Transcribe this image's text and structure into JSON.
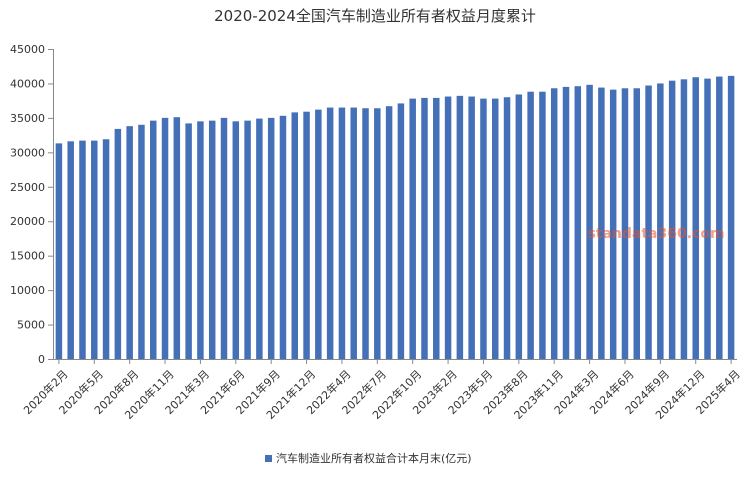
{
  "watermark": "standata360.com",
  "chart_data": {
    "type": "bar",
    "title": "2020-2024全国汽车制造业所有者权益月度累计",
    "xlabel": "",
    "ylabel": "",
    "ylim": [
      0,
      45000
    ],
    "yticks": [
      0,
      5000,
      10000,
      15000,
      20000,
      25000,
      30000,
      35000,
      40000,
      45000
    ],
    "grid": false,
    "legend_position": "bottom",
    "bar_color": "#4470b8",
    "categories": [
      "2020年2月",
      "2020年3月",
      "2020年4月",
      "2020年5月",
      "2020年6月",
      "2020年7月",
      "2020年8月",
      "2020年9月",
      "2020年10月",
      "2020年11月",
      "2020年12月",
      "2021年2月",
      "2021年3月",
      "2021年4月",
      "2021年5月",
      "2021年6月",
      "2021年7月",
      "2021年8月",
      "2021年9月",
      "2021年10月",
      "2021年11月",
      "2021年12月",
      "2022年2月",
      "2022年3月",
      "2022年4月",
      "2022年5月",
      "2022年6月",
      "2022年7月",
      "2022年8月",
      "2022年9月",
      "2022年10月",
      "2022年11月",
      "2022年12月",
      "2023年2月",
      "2023年3月",
      "2023年4月",
      "2023年5月",
      "2023年6月",
      "2023年7月",
      "2023年8月",
      "2023年9月",
      "2023年10月",
      "2023年11月",
      "2023年12月",
      "2024年2月",
      "2024年3月",
      "2024年4月",
      "2024年5月",
      "2024年6月",
      "2024年7月",
      "2024年8月",
      "2024年9月",
      "2024年10月",
      "2024年11月",
      "2024年12月",
      "2025年2月",
      "2025年3月",
      "2025年4月"
    ],
    "x_tick_labels": [
      "2020年2月",
      "2020年5月",
      "2020年8月",
      "2020年11月",
      "2021年3月",
      "2021年6月",
      "2021年9月",
      "2021年12月",
      "2022年4月",
      "2022年7月",
      "2022年10月",
      "2023年2月",
      "2023年5月",
      "2023年8月",
      "2023年11月",
      "2024年3月",
      "2024年6月",
      "2024年9月",
      "2024年12月",
      "2025年4月"
    ],
    "series": [
      {
        "name": "汽车制造业所有者权益合计本月末(亿元)",
        "values": [
          31300,
          31600,
          31700,
          31700,
          31900,
          33400,
          33800,
          34000,
          34600,
          35000,
          35100,
          34200,
          34500,
          34600,
          35000,
          34500,
          34600,
          34900,
          35000,
          35300,
          35800,
          35900,
          36200,
          36500,
          36500,
          36500,
          36400,
          36400,
          36700,
          37100,
          37800,
          37900,
          37900,
          38100,
          38200,
          38100,
          37800,
          37800,
          38000,
          38400,
          38800,
          38800,
          39300,
          39500,
          39600,
          39800,
          39400,
          39100,
          39300,
          39300,
          39700,
          40000,
          40400,
          40600,
          40900,
          40700,
          41000,
          41100
        ]
      }
    ]
  }
}
